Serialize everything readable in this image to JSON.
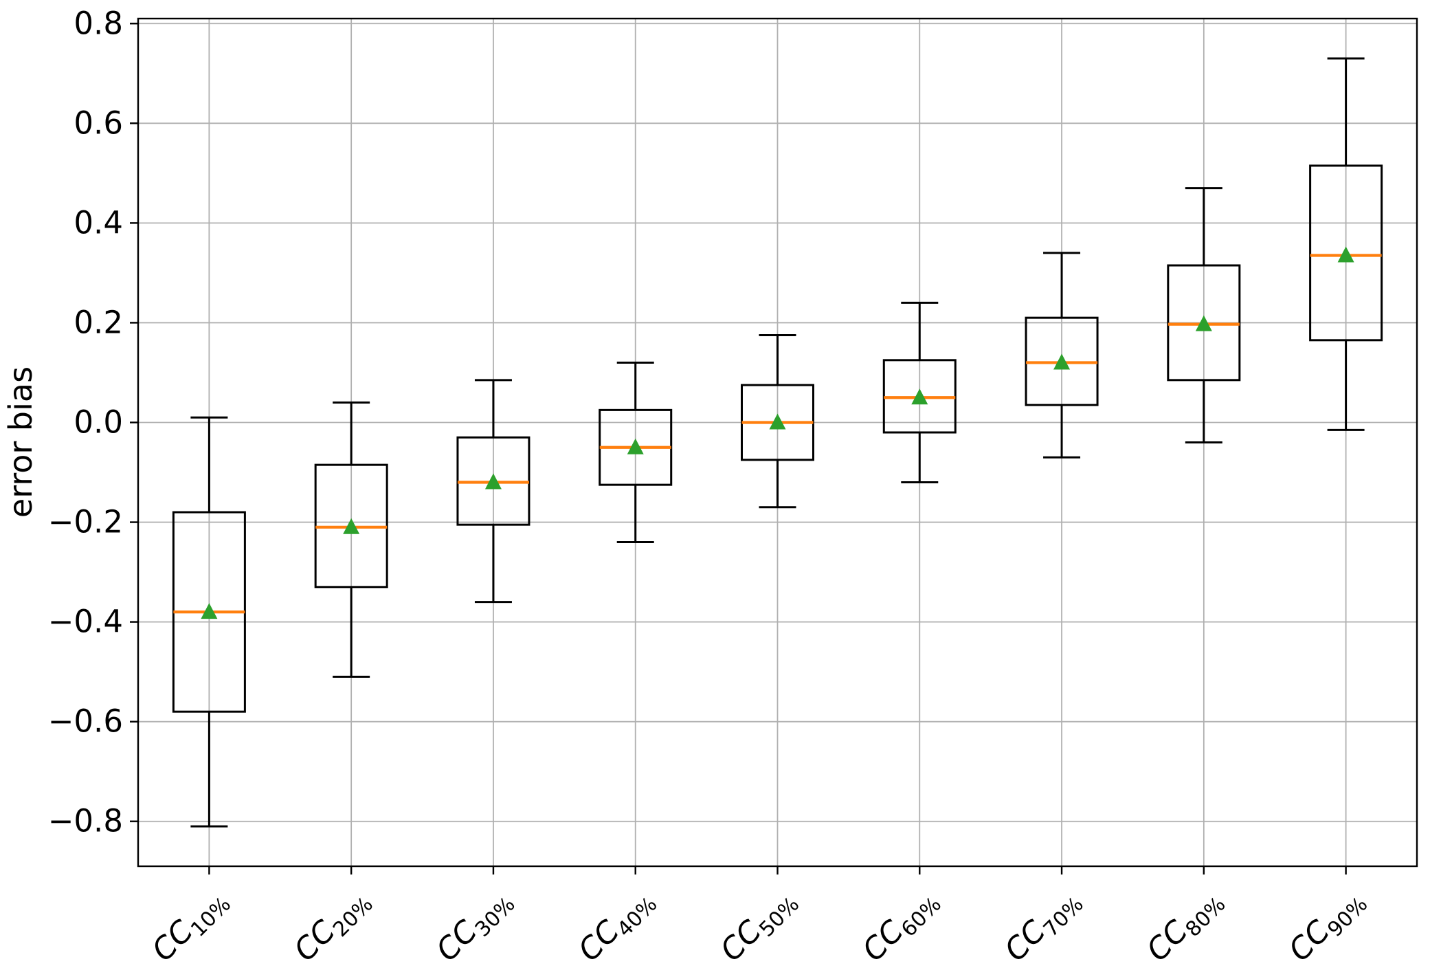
{
  "chart_data": {
    "type": "boxplot",
    "title": "",
    "xlabel": "",
    "ylabel": "error bias",
    "ylim": [
      -0.89,
      0.81
    ],
    "yticks": [
      0.8,
      0.6,
      0.4,
      0.2,
      0.0,
      -0.2,
      -0.4,
      -0.6,
      -0.8
    ],
    "ytick_labels": [
      "0.8",
      "0.6",
      "0.4",
      "0.2",
      "0.0",
      "−0.2",
      "−0.4",
      "−0.6",
      "−0.8"
    ],
    "grid": true,
    "legend": false,
    "x_categories": [
      {
        "base": "CC",
        "subscript": "10%"
      },
      {
        "base": "CC",
        "subscript": "20%"
      },
      {
        "base": "CC",
        "subscript": "30%"
      },
      {
        "base": "CC",
        "subscript": "40%"
      },
      {
        "base": "CC",
        "subscript": "50%"
      },
      {
        "base": "CC",
        "subscript": "60%"
      },
      {
        "base": "CC",
        "subscript": "70%"
      },
      {
        "base": "CC",
        "subscript": "80%"
      },
      {
        "base": "CC",
        "subscript": "90%"
      }
    ],
    "series": [
      {
        "label": "CC10%",
        "whisker_low": -0.81,
        "q1": -0.58,
        "median": -0.38,
        "mean": -0.38,
        "q3": -0.18,
        "whisker_high": 0.01
      },
      {
        "label": "CC20%",
        "whisker_low": -0.51,
        "q1": -0.33,
        "median": -0.21,
        "mean": -0.21,
        "q3": -0.085,
        "whisker_high": 0.04
      },
      {
        "label": "CC30%",
        "whisker_low": -0.36,
        "q1": -0.205,
        "median": -0.12,
        "mean": -0.12,
        "q3": -0.03,
        "whisker_high": 0.085
      },
      {
        "label": "CC40%",
        "whisker_low": -0.24,
        "q1": -0.125,
        "median": -0.05,
        "mean": -0.05,
        "q3": 0.025,
        "whisker_high": 0.12
      },
      {
        "label": "CC50%",
        "whisker_low": -0.17,
        "q1": -0.075,
        "median": 0.0,
        "mean": 0.0,
        "q3": 0.075,
        "whisker_high": 0.175
      },
      {
        "label": "CC60%",
        "whisker_low": -0.12,
        "q1": -0.02,
        "median": 0.05,
        "mean": 0.05,
        "q3": 0.125,
        "whisker_high": 0.24
      },
      {
        "label": "CC70%",
        "whisker_low": -0.07,
        "q1": 0.035,
        "median": 0.12,
        "mean": 0.12,
        "q3": 0.21,
        "whisker_high": 0.34
      },
      {
        "label": "CC80%",
        "whisker_low": -0.04,
        "q1": 0.085,
        "median": 0.197,
        "mean": 0.197,
        "q3": 0.315,
        "whisker_high": 0.47
      },
      {
        "label": "CC90%",
        "whisker_low": -0.015,
        "q1": 0.165,
        "median": 0.335,
        "mean": 0.335,
        "q3": 0.515,
        "whisker_high": 0.73
      }
    ],
    "colors": {
      "median": "#ff7f0e",
      "mean_marker": "#2ca02c",
      "box_line": "#000000",
      "grid_line": "#b0b0b0",
      "background": "#ffffff"
    },
    "mean_marker_shape": "triangle-up"
  }
}
